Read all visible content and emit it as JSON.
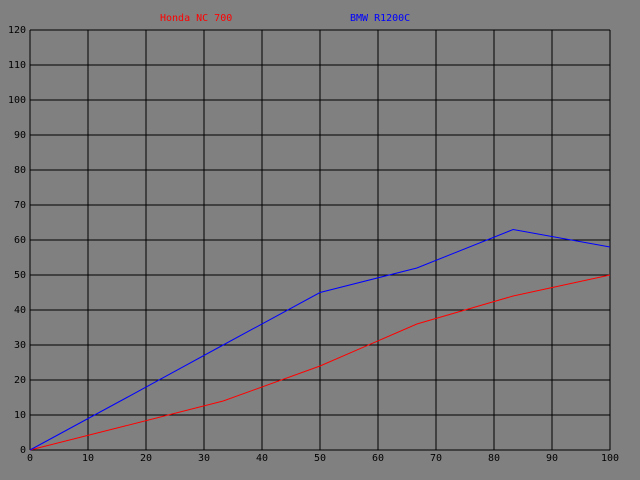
{
  "chart_data": {
    "type": "line",
    "x": [
      0,
      16.7,
      33.3,
      50,
      66.7,
      83.3,
      100
    ],
    "series": [
      {
        "name": "Honda NC 700",
        "color": "#ff0000",
        "values": [
          0,
          7,
          14,
          24,
          36,
          44,
          50
        ]
      },
      {
        "name": "BMW R1200C",
        "color": "#0000ff",
        "values": [
          0,
          15,
          30,
          45,
          52,
          63,
          58
        ]
      }
    ],
    "xlim": [
      0,
      100
    ],
    "xticks": [
      0,
      10,
      20,
      30,
      40,
      50,
      60,
      70,
      80,
      90,
      100
    ],
    "ylim": [
      0,
      120
    ],
    "yticks": [
      0,
      10,
      20,
      30,
      40,
      50,
      60,
      70,
      80,
      90,
      100,
      110,
      120
    ],
    "grid": true,
    "grid_color": "#000000",
    "background": "#808080"
  }
}
